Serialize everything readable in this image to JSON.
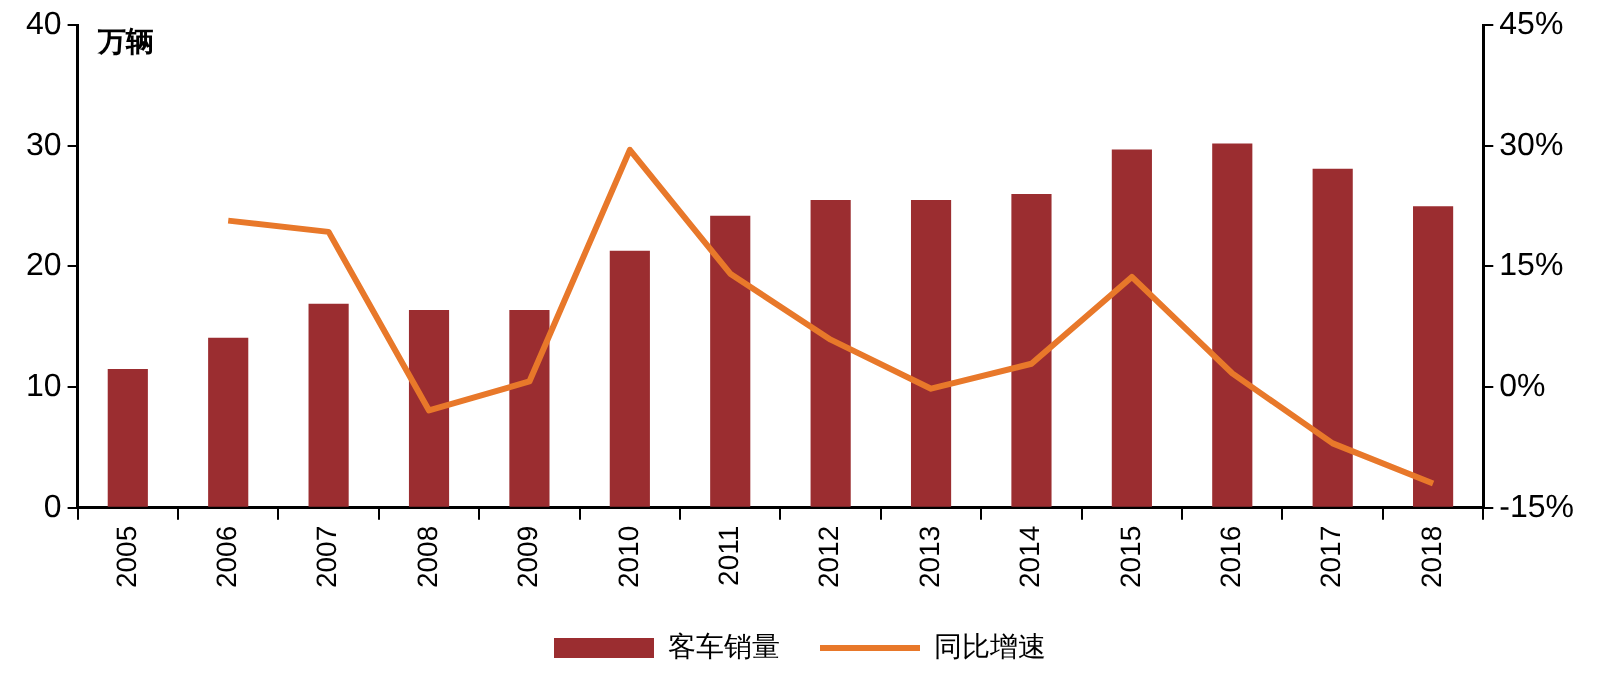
{
  "chart_data": {
    "type": "bar",
    "ylabel": "万辆",
    "categories": [
      "2005",
      "2006",
      "2007",
      "2008",
      "2009",
      "2010",
      "2011",
      "2012",
      "2013",
      "2014",
      "2015",
      "2016",
      "2017",
      "2018"
    ],
    "series": [
      {
        "name": "客车销量",
        "color": "#9b2d30",
        "values": [
          11.5,
          14.1,
          16.9,
          16.4,
          16.4,
          21.3,
          24.2,
          25.5,
          25.5,
          26.0,
          29.7,
          30.2,
          28.1,
          25.0
        ]
      },
      {
        "name": "同比增速",
        "type": "line",
        "axis": "y2",
        "color": "#e8782a",
        "marker": "none",
        "values": [
          null,
          20.7,
          19.3,
          -2.9,
          0.7,
          29.5,
          14.1,
          5.9,
          -0.2,
          2.9,
          13.7,
          1.7,
          -7.0,
          -12.0
        ]
      }
    ],
    "ylim": [
      0,
      40
    ],
    "yticks": [
      0,
      10,
      20,
      30,
      40
    ],
    "y2lim": [
      -15,
      45
    ],
    "y2ticks": [
      {
        "value": -15,
        "label": "-15%"
      },
      {
        "value": 0,
        "label": "0%"
      },
      {
        "value": 15,
        "label": "15%"
      },
      {
        "value": 30,
        "label": "30%"
      },
      {
        "value": 45,
        "label": "45%"
      }
    ],
    "grid": false,
    "legend": "bottom"
  }
}
